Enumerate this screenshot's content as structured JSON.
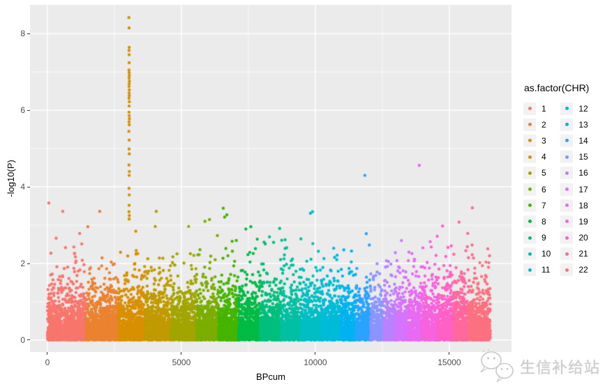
{
  "panel": {
    "background": "#EBEBEB",
    "grid_color": "#FFFFFF",
    "tick_color": "#333333",
    "tick_label_color": "#4D4D4D"
  },
  "axes": {
    "x": {
      "label": "BPcum",
      "ticks": [
        0,
        5000,
        10000,
        15000
      ],
      "tick_labels": [
        "0",
        "5000",
        "10000",
        "15000"
      ],
      "minor_ticks": [
        2500,
        7500,
        12500
      ]
    },
    "y": {
      "label": "-log10(P)",
      "ticks": [
        0,
        2,
        4,
        6,
        8
      ],
      "tick_labels": [
        "0",
        "2",
        "4",
        "6",
        "8"
      ],
      "minor_ticks": [
        1,
        3,
        5,
        7
      ]
    }
  },
  "legend": {
    "title": "as.factor(CHR)",
    "key_fill": "#F2F2F2",
    "rows_per_column": 11
  },
  "watermark": {
    "text": "生信补给站",
    "color": "#CECECE",
    "icon": "wechat-icon"
  },
  "chart_data": {
    "type": "scatter",
    "variant": "manhattan-plot",
    "title": "",
    "xlabel": "BPcum",
    "ylabel": "-log10(P)",
    "xlim": [
      -650,
      17320
    ],
    "ylim": [
      -0.31,
      8.75
    ],
    "x_ticks": [
      0,
      5000,
      10000,
      15000
    ],
    "y_ticks": [
      0,
      2,
      4,
      6,
      8
    ],
    "grid": true,
    "legend_title": "as.factor(CHR)",
    "legend_position": "right",
    "point_radius_px": 2.2,
    "background_density_points_per_unit": 0.8,
    "background_max_neglogp": 3.55,
    "seed": 42,
    "chromosomes": [
      {
        "chr": 1,
        "color": "#F8766D",
        "start": 0,
        "end": 1430
      },
      {
        "chr": 2,
        "color": "#EA8331",
        "start": 1430,
        "end": 2660
      },
      {
        "chr": 3,
        "color": "#D89000",
        "start": 2660,
        "end": 3650
      },
      {
        "chr": 4,
        "color": "#C09B00",
        "start": 3650,
        "end": 4610
      },
      {
        "chr": 5,
        "color": "#A3A500",
        "start": 4610,
        "end": 5570
      },
      {
        "chr": 6,
        "color": "#7CAE00",
        "start": 5570,
        "end": 6380
      },
      {
        "chr": 7,
        "color": "#45B500",
        "start": 6380,
        "end": 7135
      },
      {
        "chr": 8,
        "color": "#00BB45",
        "start": 7135,
        "end": 7940
      },
      {
        "chr": 9,
        "color": "#00BF7D",
        "start": 7940,
        "end": 8720
      },
      {
        "chr": 10,
        "color": "#00C0A2",
        "start": 8720,
        "end": 9480
      },
      {
        "chr": 11,
        "color": "#00BFC4",
        "start": 9480,
        "end": 10210
      },
      {
        "chr": 12,
        "color": "#00BCD8",
        "start": 10210,
        "end": 10940
      },
      {
        "chr": 13,
        "color": "#00B3F0",
        "start": 10940,
        "end": 11510
      },
      {
        "chr": 14,
        "color": "#2BA3FF",
        "start": 11510,
        "end": 12060
      },
      {
        "chr": 15,
        "color": "#8B95FF",
        "start": 12060,
        "end": 12550
      },
      {
        "chr": 16,
        "color": "#B982FF",
        "start": 12550,
        "end": 12990
      },
      {
        "chr": 17,
        "color": "#D575FE",
        "start": 12990,
        "end": 13460
      },
      {
        "chr": 18,
        "color": "#E76BF3",
        "start": 13460,
        "end": 13980
      },
      {
        "chr": 19,
        "color": "#F763DF",
        "start": 13980,
        "end": 14580
      },
      {
        "chr": 20,
        "color": "#FF61C7",
        "start": 14580,
        "end": 15160
      },
      {
        "chr": 21,
        "color": "#FF689E",
        "start": 15160,
        "end": 15730
      },
      {
        "chr": 22,
        "color": "#FC7181",
        "start": 15730,
        "end": 16530
      }
    ],
    "peak": {
      "chr": 3,
      "description": "vertical column of significant SNPs on chromosome 3 near BPcum 3050",
      "points": [
        [
          3040,
          8.42
        ],
        [
          3048,
          8.15
        ],
        [
          3052,
          7.64
        ],
        [
          3046,
          7.56
        ],
        [
          3050,
          7.45
        ],
        [
          3051,
          7.24
        ],
        [
          3044,
          7.05
        ],
        [
          3052,
          6.98
        ],
        [
          3056,
          6.91
        ],
        [
          3048,
          6.84
        ],
        [
          3060,
          6.76
        ],
        [
          3052,
          6.69
        ],
        [
          3046,
          6.62
        ],
        [
          3057,
          6.53
        ],
        [
          3049,
          6.45
        ],
        [
          3055,
          6.38
        ],
        [
          3043,
          6.31
        ],
        [
          3058,
          6.22
        ],
        [
          3050,
          6.11
        ],
        [
          3045,
          5.95
        ],
        [
          3053,
          5.86
        ],
        [
          3060,
          5.78
        ],
        [
          3047,
          5.7
        ],
        [
          3055,
          5.62
        ],
        [
          3040,
          5.45
        ],
        [
          3052,
          5.22
        ],
        [
          3048,
          4.99
        ],
        [
          3055,
          4.86
        ],
        [
          3044,
          4.57
        ],
        [
          3058,
          4.4
        ],
        [
          3050,
          4.3
        ],
        [
          3046,
          3.96
        ],
        [
          3054,
          3.79
        ],
        [
          3049,
          3.52
        ],
        [
          3044,
          3.35
        ],
        [
          3056,
          3.25
        ],
        [
          3050,
          3.16
        ]
      ]
    },
    "outliers": [
      {
        "chr": 1,
        "x": 52,
        "y": 3.58
      },
      {
        "chr": 1,
        "x": 573,
        "y": 3.36
      },
      {
        "chr": 2,
        "x": 1953,
        "y": 3.36
      },
      {
        "chr": 4,
        "x": 4062,
        "y": 3.36
      },
      {
        "chr": 6,
        "x": 5880,
        "y": 3.1
      },
      {
        "chr": 7,
        "x": 6614,
        "y": 3.21
      },
      {
        "chr": 8,
        "x": 7592,
        "y": 2.96
      },
      {
        "chr": 11,
        "x": 9816,
        "y": 3.31
      },
      {
        "chr": 11,
        "x": 9894,
        "y": 3.35
      },
      {
        "chr": 14,
        "x": 11848,
        "y": 4.3
      },
      {
        "chr": 18,
        "x": 13879,
        "y": 4.56
      },
      {
        "chr": 21,
        "x": 15363,
        "y": 3.08
      },
      {
        "chr": 22,
        "x": 15858,
        "y": 3.45
      }
    ]
  }
}
